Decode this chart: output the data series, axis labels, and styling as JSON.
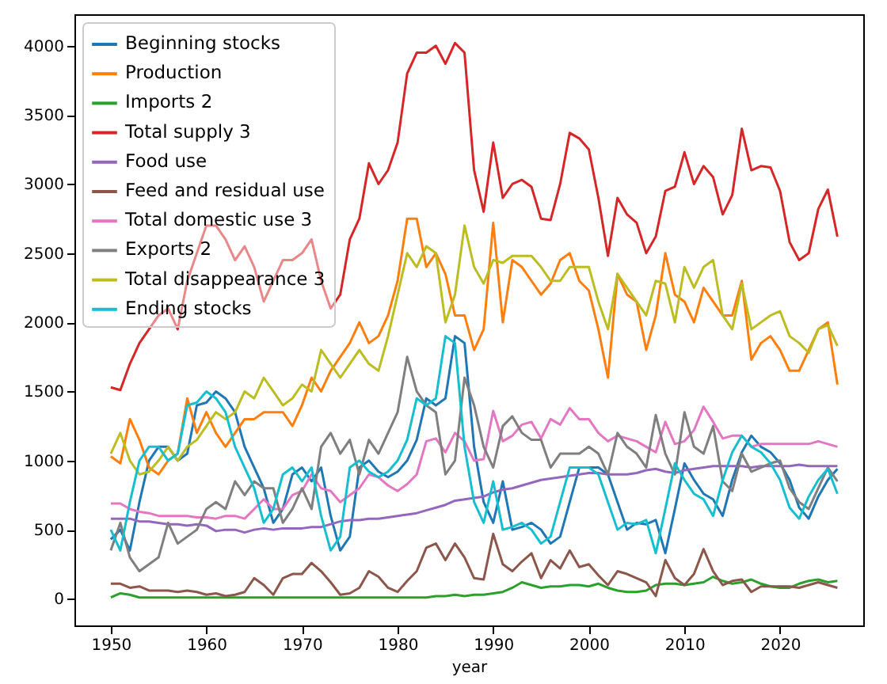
{
  "chart_data": {
    "type": "line",
    "xlabel": "year",
    "legend": "top left",
    "xlim": [
      1946.2,
      2028.7
    ],
    "ylim": [
      -192,
      4228
    ],
    "xticks": [
      1950,
      1960,
      1970,
      1980,
      1990,
      2000,
      2010,
      2020
    ],
    "yticks": [
      0,
      500,
      1000,
      1500,
      2000,
      2500,
      3000,
      3500,
      4000
    ],
    "x": [
      1950,
      1951,
      1952,
      1953,
      1954,
      1955,
      1956,
      1957,
      1958,
      1959,
      1960,
      1961,
      1962,
      1963,
      1964,
      1965,
      1966,
      1967,
      1968,
      1969,
      1970,
      1971,
      1972,
      1973,
      1974,
      1975,
      1976,
      1977,
      1978,
      1979,
      1980,
      1981,
      1982,
      1983,
      1984,
      1985,
      1986,
      1987,
      1988,
      1989,
      1990,
      1991,
      1992,
      1993,
      1994,
      1995,
      1996,
      1997,
      1998,
      1999,
      2000,
      2001,
      2002,
      2003,
      2004,
      2005,
      2006,
      2007,
      2008,
      2009,
      2010,
      2011,
      2012,
      2013,
      2014,
      2015,
      2016,
      2017,
      2018,
      2019,
      2020,
      2021,
      2022,
      2023,
      2024,
      2025,
      2026
    ],
    "series": [
      {
        "name": "Beginning stocks",
        "color": "#1f77b4",
        "values": [
          430,
          500,
          350,
          700,
          1000,
          1100,
          1100,
          1000,
          1050,
          1400,
          1420,
          1500,
          1450,
          1350,
          1100,
          950,
          800,
          550,
          650,
          900,
          950,
          850,
          950,
          600,
          350,
          450,
          950,
          1000,
          920,
          880,
          920,
          1000,
          1150,
          1450,
          1400,
          1450,
          1900,
          1850,
          1100,
          700,
          550,
          850,
          500,
          520,
          550,
          500,
          400,
          450,
          700,
          950,
          950,
          950,
          900,
          700,
          500,
          550,
          540,
          570,
          330,
          650,
          980,
          860,
          760,
          720,
          600,
          860,
          1060,
          1180,
          1100,
          1060,
          980,
          860,
          660,
          580,
          740,
          860,
          940
        ]
      },
      {
        "name": "Production",
        "color": "#ff7f0e",
        "values": [
          1030,
          980,
          1300,
          1150,
          950,
          900,
          1000,
          1050,
          1450,
          1200,
          1350,
          1200,
          1100,
          1200,
          1300,
          1300,
          1350,
          1350,
          1350,
          1250,
          1400,
          1600,
          1500,
          1650,
          1750,
          1850,
          2000,
          1850,
          1900,
          2050,
          2300,
          2750,
          2750,
          2400,
          2500,
          2350,
          2050,
          2050,
          1800,
          1950,
          2720,
          2000,
          2450,
          2400,
          2300,
          2200,
          2280,
          2450,
          2500,
          2300,
          2230,
          1950,
          1600,
          2350,
          2200,
          2150,
          1800,
          2050,
          2500,
          2200,
          2150,
          2000,
          2250,
          2150,
          2050,
          2050,
          2300,
          1730,
          1850,
          1900,
          1800,
          1650,
          1650,
          1800,
          1950,
          2000,
          1550
        ]
      },
      {
        "name": "Imports 2",
        "color": "#2ca02c",
        "values": [
          10,
          40,
          30,
          10,
          10,
          10,
          10,
          10,
          10,
          10,
          10,
          10,
          10,
          10,
          10,
          10,
          10,
          10,
          10,
          10,
          10,
          10,
          10,
          10,
          10,
          10,
          10,
          10,
          10,
          10,
          10,
          10,
          10,
          10,
          20,
          20,
          30,
          20,
          30,
          30,
          40,
          50,
          80,
          120,
          100,
          80,
          90,
          90,
          100,
          100,
          90,
          110,
          80,
          60,
          50,
          50,
          60,
          100,
          110,
          110,
          100,
          110,
          120,
          160,
          130,
          110,
          120,
          140,
          110,
          90,
          80,
          80,
          110,
          130,
          140,
          120,
          130
        ]
      },
      {
        "name": "Total supply 3",
        "color": "#d62728",
        "values": [
          1530,
          1510,
          1700,
          1850,
          1950,
          2050,
          2100,
          1950,
          2300,
          2500,
          2700,
          2700,
          2600,
          2450,
          2550,
          2400,
          2150,
          2300,
          2450,
          2450,
          2500,
          2600,
          2300,
          2100,
          2200,
          2600,
          2750,
          3150,
          3000,
          3100,
          3300,
          3800,
          3950,
          3950,
          4000,
          3870,
          4020,
          3950,
          3100,
          2800,
          3300,
          2900,
          3000,
          3030,
          2980,
          2750,
          2740,
          3000,
          3370,
          3330,
          3250,
          2900,
          2480,
          2900,
          2780,
          2720,
          2500,
          2620,
          2950,
          2980,
          3230,
          3000,
          3130,
          3050,
          2780,
          2920,
          3400,
          3100,
          3130,
          3120,
          2950,
          2580,
          2450,
          2500,
          2820,
          2960,
          2620
        ]
      },
      {
        "name": "Food use",
        "color": "#9467bd",
        "values": [
          580,
          580,
          580,
          560,
          560,
          550,
          540,
          540,
          530,
          540,
          530,
          490,
          500,
          500,
          480,
          500,
          510,
          500,
          510,
          510,
          510,
          520,
          520,
          540,
          560,
          570,
          570,
          580,
          580,
          590,
          600,
          610,
          620,
          640,
          660,
          680,
          710,
          720,
          730,
          740,
          770,
          790,
          800,
          820,
          840,
          860,
          870,
          880,
          890,
          900,
          910,
          910,
          900,
          900,
          900,
          910,
          930,
          940,
          920,
          910,
          930,
          940,
          950,
          960,
          960,
          960,
          960,
          950,
          960,
          960,
          960,
          960,
          970,
          960,
          960,
          960,
          960
        ]
      },
      {
        "name": "Feed and residual use",
        "color": "#8c564b",
        "values": [
          110,
          110,
          80,
          90,
          60,
          60,
          60,
          50,
          60,
          50,
          30,
          40,
          20,
          30,
          50,
          150,
          100,
          30,
          150,
          180,
          180,
          260,
          200,
          120,
          30,
          40,
          80,
          200,
          160,
          80,
          50,
          130,
          200,
          370,
          400,
          280,
          400,
          300,
          150,
          140,
          470,
          250,
          200,
          270,
          330,
          150,
          280,
          220,
          350,
          230,
          250,
          170,
          100,
          200,
          180,
          150,
          120,
          20,
          280,
          150,
          100,
          180,
          360,
          200,
          100,
          130,
          140,
          50,
          90,
          90,
          90,
          90,
          80,
          100,
          120,
          100,
          80
        ]
      },
      {
        "name": "Total domestic use 3",
        "color": "#e377c2",
        "values": [
          690,
          690,
          650,
          630,
          620,
          600,
          600,
          600,
          600,
          590,
          590,
          580,
          600,
          600,
          580,
          650,
          720,
          650,
          650,
          750,
          780,
          900,
          800,
          780,
          700,
          750,
          800,
          900,
          880,
          820,
          780,
          830,
          900,
          1140,
          1160,
          1060,
          1200,
          1140,
          1000,
          1010,
          1360,
          1140,
          1180,
          1260,
          1280,
          1160,
          1300,
          1260,
          1380,
          1300,
          1300,
          1200,
          1140,
          1180,
          1160,
          1140,
          1100,
          1060,
          1280,
          1120,
          1140,
          1220,
          1390,
          1280,
          1160,
          1180,
          1180,
          1100,
          1120,
          1120,
          1120,
          1120,
          1120,
          1120,
          1140,
          1120,
          1100
        ]
      },
      {
        "name": "Exports 2",
        "color": "#7f7f7f",
        "values": [
          350,
          550,
          300,
          200,
          250,
          300,
          550,
          400,
          450,
          500,
          650,
          700,
          650,
          850,
          750,
          850,
          800,
          800,
          550,
          650,
          800,
          650,
          1100,
          1200,
          1050,
          1150,
          900,
          1150,
          1050,
          1200,
          1350,
          1750,
          1500,
          1400,
          1350,
          900,
          1000,
          1600,
          1400,
          1100,
          950,
          1250,
          1320,
          1200,
          1150,
          1150,
          950,
          1050,
          1050,
          1050,
          1100,
          1050,
          900,
          1200,
          1100,
          1050,
          950,
          1330,
          1050,
          900,
          1350,
          1100,
          1050,
          1250,
          850,
          780,
          1050,
          920,
          950,
          980,
          1000,
          800,
          700,
          650,
          800,
          950,
          850
        ]
      },
      {
        "name": "Total disappearance 3",
        "color": "#bcbd22",
        "values": [
          1050,
          1200,
          1000,
          900,
          920,
          1000,
          1100,
          1000,
          1100,
          1150,
          1250,
          1350,
          1300,
          1350,
          1500,
          1450,
          1600,
          1500,
          1400,
          1450,
          1550,
          1500,
          1800,
          1700,
          1600,
          1700,
          1800,
          1700,
          1650,
          1900,
          2200,
          2500,
          2400,
          2550,
          2500,
          2000,
          2200,
          2700,
          2400,
          2280,
          2450,
          2430,
          2480,
          2480,
          2480,
          2400,
          2300,
          2300,
          2400,
          2400,
          2400,
          2150,
          1950,
          2350,
          2250,
          2150,
          2050,
          2300,
          2280,
          2000,
          2400,
          2250,
          2400,
          2450,
          2050,
          1950,
          2280,
          1950,
          2000,
          2050,
          2080,
          1900,
          1850,
          1780,
          1950,
          1980,
          1830
        ]
      },
      {
        "name": "Ending stocks",
        "color": "#17becf",
        "values": [
          500,
          350,
          700,
          1000,
          1100,
          1100,
          1000,
          1050,
          1400,
          1420,
          1500,
          1450,
          1350,
          1100,
          950,
          800,
          550,
          650,
          900,
          950,
          850,
          950,
          600,
          350,
          450,
          950,
          1000,
          920,
          880,
          920,
          1000,
          1150,
          1450,
          1400,
          1450,
          1900,
          1850,
          1100,
          700,
          550,
          850,
          500,
          520,
          550,
          500,
          400,
          450,
          700,
          950,
          950,
          950,
          900,
          700,
          500,
          550,
          540,
          570,
          330,
          650,
          980,
          860,
          760,
          720,
          600,
          860,
          1060,
          1180,
          1100,
          1060,
          980,
          860,
          660,
          580,
          740,
          860,
          940,
          760
        ]
      }
    ]
  }
}
